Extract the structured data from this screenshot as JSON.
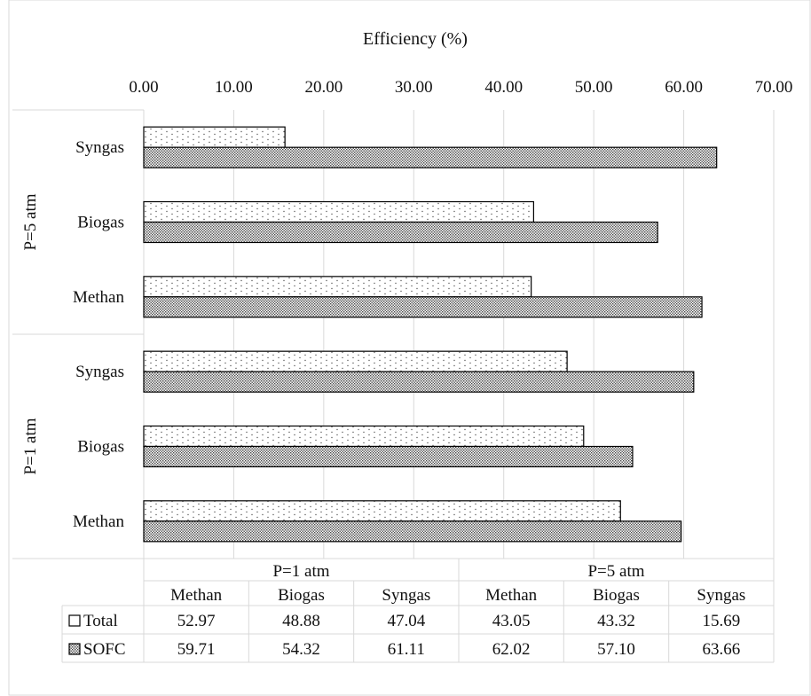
{
  "chart_data": {
    "type": "bar",
    "orientation": "horizontal",
    "title": "Efficiency (%)",
    "xlim": [
      0,
      70
    ],
    "x_ticks": [
      "0.00",
      "10.00",
      "20.00",
      "30.00",
      "40.00",
      "50.00",
      "60.00",
      "70.00"
    ],
    "grid": true,
    "groups": [
      {
        "label": "P=5 atm",
        "categories": [
          "Syngas",
          "Biogas",
          "Methan"
        ]
      },
      {
        "label": "P=1 atm",
        "categories": [
          "Syngas",
          "Biogas",
          "Methan"
        ]
      }
    ],
    "series": [
      {
        "name": "Total",
        "symbol": "□",
        "values_top_to_bottom": [
          15.69,
          43.32,
          43.05,
          47.04,
          48.88,
          52.97
        ]
      },
      {
        "name": "SOFC",
        "symbol": "▩",
        "values_top_to_bottom": [
          63.66,
          57.1,
          62.02,
          61.11,
          54.32,
          59.71
        ]
      }
    ],
    "data_table": {
      "groups": [
        "P=1 atm",
        "P=5 atm"
      ],
      "columns": [
        "Methan",
        "Biogas",
        "Syngas",
        "Methan",
        "Biogas",
        "Syngas"
      ],
      "rows": [
        {
          "label": "Total",
          "symbol": "□",
          "values": [
            "52.97",
            "48.88",
            "47.04",
            "43.05",
            "43.32",
            "15.69"
          ]
        },
        {
          "label": "SOFC",
          "symbol": "▩",
          "values": [
            "59.71",
            "54.32",
            "61.11",
            "62.02",
            "57.10",
            "63.66"
          ]
        }
      ]
    }
  }
}
